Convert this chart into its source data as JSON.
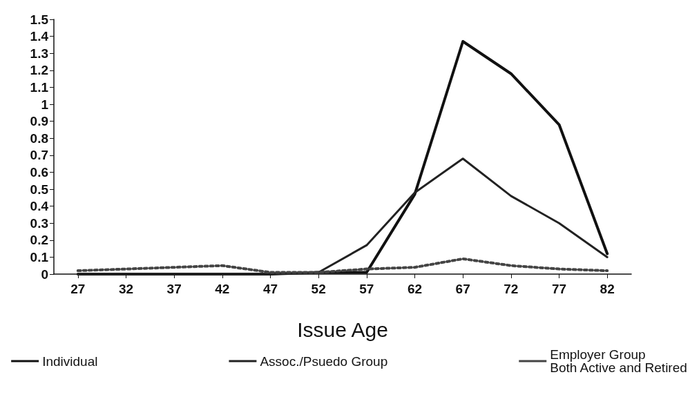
{
  "chart_data": {
    "type": "line",
    "xlabel": "Issue Age",
    "categories": [
      "27",
      "32",
      "37",
      "42",
      "47",
      "52",
      "57",
      "62",
      "67",
      "72",
      "77",
      "82"
    ],
    "series": [
      {
        "name": "Individual",
        "color": "#111111",
        "line_style": "solid",
        "values": [
          0,
          0,
          0,
          0,
          0,
          0.01,
          0.01,
          0.47,
          1.37,
          1.18,
          0.88,
          0.12
        ]
      },
      {
        "name": "Assoc./Psuedo Group",
        "color": "#222222",
        "line_style": "solid",
        "values": [
          0,
          0,
          0,
          0,
          0,
          0.01,
          0.17,
          0.48,
          0.68,
          0.46,
          0.3,
          0.1
        ]
      },
      {
        "name": "Employer Group\nBoth Active and Retired",
        "color": "#444444",
        "line_style": "dotted",
        "values": [
          0.02,
          0.03,
          0.04,
          0.05,
          0.01,
          0.01,
          0.03,
          0.04,
          0.09,
          0.05,
          0.03,
          0.02
        ]
      }
    ],
    "ylim": [
      0,
      1.5
    ],
    "yticks": [
      0,
      0.1,
      0.2,
      0.3,
      0.4,
      0.5,
      0.6,
      0.7,
      0.8,
      0.9,
      1,
      1.1,
      1.2,
      1.3,
      1.4,
      1.5
    ],
    "grid": false,
    "legend": "bottom",
    "marker": "none"
  }
}
